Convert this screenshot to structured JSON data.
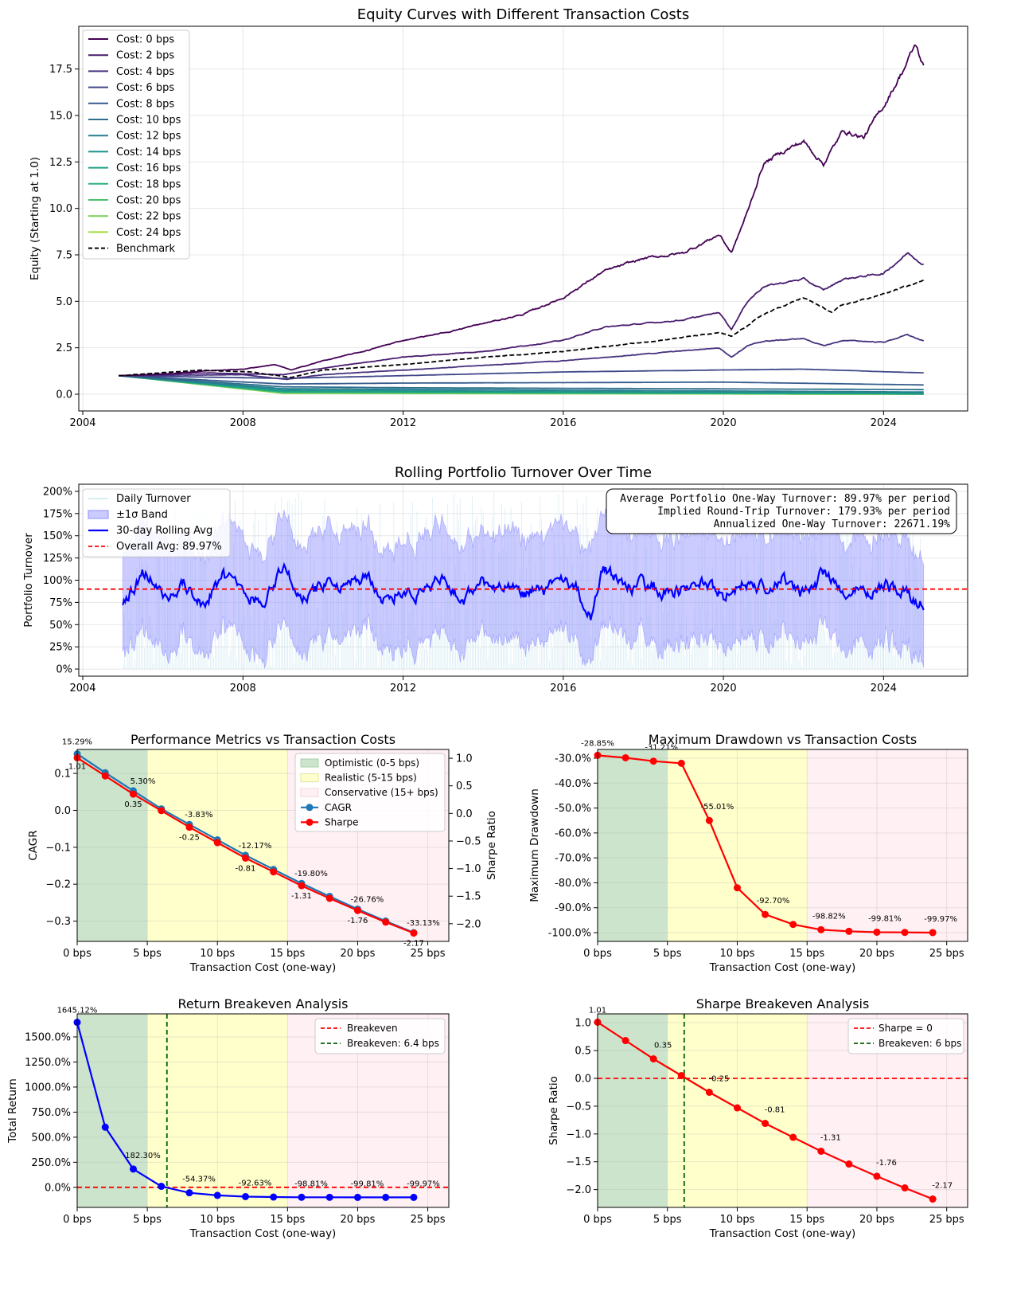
{
  "colors": {
    "costs": [
      "#440154",
      "#481b6d",
      "#46327e",
      "#3f4788",
      "#365c8d",
      "#2e6e8e",
      "#277f8e",
      "#21918c",
      "#1fa187",
      "#2db27d",
      "#4ac16d",
      "#73d056",
      "#a0da39"
    ],
    "benchmark": "#000000",
    "blue": "#0000ff",
    "band": "#8c8cff",
    "red": "#ff0000",
    "green_dash": "#006400",
    "zone_optimistic": "#cce4cc",
    "zone_realistic": "#ffffcc",
    "zone_conservative": "#fff0f3",
    "cagr_line": "#1f77b4"
  },
  "chart_data": [
    {
      "type": "line",
      "title": "Equity Curves with Different Transaction Costs",
      "ylabel": "Equity (Starting at 1.0)",
      "xlabel": "",
      "xlim": [
        2003.9,
        2026.1
      ],
      "ylim": [
        -0.9,
        19.8
      ],
      "xticks": [
        2004,
        2008,
        2012,
        2016,
        2020,
        2024
      ],
      "yticks": [
        0.0,
        2.5,
        5.0,
        7.5,
        10.0,
        12.5,
        15.0,
        17.5
      ],
      "ytick_labels": [
        "0.0",
        "2.5",
        "5.0",
        "7.5",
        "10.0",
        "12.5",
        "15.0",
        "17.5"
      ],
      "legend": [
        "Cost: 0 bps",
        "Cost: 2 bps",
        "Cost: 4 bps",
        "Cost: 6 bps",
        "Cost: 8 bps",
        "Cost: 10 bps",
        "Cost: 12 bps",
        "Cost: 14 bps",
        "Cost: 16 bps",
        "Cost: 18 bps",
        "Cost: 20 bps",
        "Cost: 22 bps",
        "Cost: 24 bps",
        "Benchmark"
      ],
      "series": [
        {
          "name": "Cost: 0 bps",
          "x": [
            2004.9,
            2006,
            2007,
            2008,
            2008.8,
            2009.2,
            2010,
            2011,
            2012,
            2013,
            2014,
            2015,
            2016,
            2017,
            2018,
            2019,
            2019.9,
            2020.2,
            2020.6,
            2021,
            2021.5,
            2022,
            2022.5,
            2023,
            2023.5,
            2024,
            2024.5,
            2024.8,
            2025
          ],
          "y": [
            1.0,
            1.08,
            1.25,
            1.35,
            1.6,
            1.3,
            1.8,
            2.3,
            2.9,
            3.3,
            3.8,
            4.3,
            5.2,
            6.6,
            7.3,
            7.6,
            8.6,
            7.6,
            9.8,
            12.4,
            13.1,
            13.6,
            12.4,
            14.2,
            13.8,
            15.5,
            17.5,
            18.8,
            17.6
          ]
        },
        {
          "name": "Cost: 2 bps",
          "x": [
            2004.9,
            2007,
            2009,
            2010,
            2012,
            2014,
            2016,
            2017,
            2019,
            2019.9,
            2020.2,
            2020.6,
            2021,
            2022,
            2022.5,
            2023,
            2024,
            2024.6,
            2025
          ],
          "y": [
            1.0,
            1.15,
            1.05,
            1.4,
            2.0,
            2.3,
            2.9,
            3.6,
            4.0,
            4.4,
            3.5,
            5.0,
            5.8,
            6.2,
            5.6,
            6.2,
            6.5,
            7.6,
            7.0
          ]
        },
        {
          "name": "Cost: 4 bps",
          "x": [
            2004.9,
            2008,
            2009.1,
            2010,
            2012,
            2016,
            2019.9,
            2020.2,
            2020.6,
            2021,
            2022,
            2022.5,
            2023,
            2024,
            2024.6,
            2025
          ],
          "y": [
            1.0,
            1.05,
            0.8,
            1.05,
            1.3,
            1.8,
            2.5,
            2.0,
            2.6,
            2.85,
            3.0,
            2.6,
            2.9,
            2.8,
            3.2,
            2.85
          ]
        },
        {
          "name": "Cost: 6 bps",
          "x": [
            2004.9,
            2009,
            2012,
            2016,
            2020,
            2022,
            2025
          ],
          "y": [
            1.0,
            0.85,
            1.0,
            1.2,
            1.3,
            1.35,
            1.15
          ]
        },
        {
          "name": "Cost: 8 bps",
          "x": [
            2004.9,
            2009,
            2012,
            2020,
            2025
          ],
          "y": [
            1.0,
            0.55,
            0.6,
            0.65,
            0.5
          ]
        },
        {
          "name": "Cost: 10 bps",
          "x": [
            2004.9,
            2009,
            2012,
            2025
          ],
          "y": [
            1.0,
            0.4,
            0.35,
            0.25
          ]
        },
        {
          "name": "Cost: 12 bps",
          "x": [
            2004.9,
            2009,
            2025
          ],
          "y": [
            1.0,
            0.3,
            0.12
          ]
        },
        {
          "name": "Cost: 14 bps",
          "x": [
            2004.9,
            2009,
            2025
          ],
          "y": [
            1.0,
            0.22,
            0.06
          ]
        },
        {
          "name": "Cost: 16 bps",
          "x": [
            2004.9,
            2009,
            2025
          ],
          "y": [
            1.0,
            0.16,
            0.03
          ]
        },
        {
          "name": "Cost: 18 bps",
          "x": [
            2004.9,
            2009,
            2025
          ],
          "y": [
            1.0,
            0.12,
            0.01
          ]
        },
        {
          "name": "Cost: 20 bps",
          "x": [
            2004.9,
            2009,
            2025
          ],
          "y": [
            1.0,
            0.09,
            0.01
          ]
        },
        {
          "name": "Cost: 22 bps",
          "x": [
            2004.9,
            2009,
            2025
          ],
          "y": [
            1.0,
            0.07,
            0.0
          ]
        },
        {
          "name": "Cost: 24 bps",
          "x": [
            2004.9,
            2009,
            2025
          ],
          "y": [
            1.0,
            0.05,
            0.0
          ]
        },
        {
          "name": "Benchmark",
          "x": [
            2004.9,
            2007,
            2008.2,
            2009.2,
            2010,
            2012,
            2014,
            2016,
            2018,
            2019.9,
            2020.2,
            2021,
            2022,
            2022.7,
            2023,
            2024,
            2025
          ],
          "y": [
            1.0,
            1.3,
            1.2,
            0.9,
            1.3,
            1.6,
            2.0,
            2.3,
            2.8,
            3.3,
            3.1,
            4.3,
            5.2,
            4.4,
            4.8,
            5.4,
            6.1
          ]
        }
      ]
    },
    {
      "type": "line",
      "title": "Rolling Portfolio Turnover Over Time",
      "ylabel": "Portfolio Turnover",
      "xlim": [
        2003.9,
        2026.1
      ],
      "ylim": [
        -0.08,
        2.08
      ],
      "xticks": [
        2004,
        2008,
        2012,
        2016,
        2020,
        2024
      ],
      "yticks": [
        0,
        0.25,
        0.5,
        0.75,
        1.0,
        1.25,
        1.5,
        1.75,
        2.0
      ],
      "ytick_labels": [
        "0%",
        "25%",
        "50%",
        "75%",
        "100%",
        "125%",
        "150%",
        "175%",
        "200%"
      ],
      "legend": [
        "Daily Turnover",
        "±1σ Band",
        "30-day Rolling Avg",
        "Overall Avg: 89.97%"
      ],
      "overall_avg": 0.8997,
      "rolling_avg": {
        "x": [
          2005,
          2005.3,
          2005.6,
          2006,
          2006.5,
          2007,
          2007.5,
          2008,
          2008.5,
          2009,
          2009.5,
          2010,
          2010.5,
          2011,
          2011.5,
          2012,
          2012.5,
          2013,
          2013.5,
          2014,
          2014.5,
          2015,
          2015.5,
          2016,
          2016.4,
          2016.7,
          2017,
          2017.5,
          2018,
          2018.5,
          2019,
          2019.5,
          2020,
          2020.5,
          2021,
          2021.5,
          2022,
          2022.5,
          2023,
          2023.5,
          2024,
          2024.5,
          2025
        ],
        "y": [
          0.75,
          0.95,
          1.1,
          0.8,
          0.95,
          0.75,
          1.05,
          0.85,
          0.78,
          1.15,
          0.8,
          0.95,
          0.9,
          1.05,
          0.8,
          0.9,
          0.85,
          1.0,
          0.75,
          1.0,
          0.88,
          0.85,
          0.9,
          0.95,
          0.85,
          0.55,
          1.18,
          0.9,
          0.95,
          0.88,
          0.9,
          1.0,
          0.8,
          0.95,
          0.9,
          1.0,
          0.85,
          1.05,
          0.9,
          0.85,
          0.95,
          0.88,
          0.75
        ]
      },
      "band_upper": [
        1.3,
        1.55,
        1.7,
        1.45,
        1.5,
        1.3,
        1.65,
        1.45,
        1.35,
        1.75,
        1.4,
        1.55,
        1.5,
        1.6,
        1.35,
        1.5,
        1.45,
        1.6,
        1.35,
        1.55,
        1.5,
        1.45,
        1.5,
        1.55,
        1.45,
        1.35,
        1.8,
        1.5,
        1.55,
        1.5,
        1.5,
        1.6,
        1.4,
        1.55,
        1.5,
        1.6,
        1.45,
        1.65,
        1.5,
        1.45,
        1.55,
        1.5,
        1.3
      ],
      "band_lower": [
        0.2,
        0.35,
        0.5,
        0.15,
        0.4,
        0.2,
        0.45,
        0.25,
        0.2,
        0.55,
        0.2,
        0.35,
        0.3,
        0.5,
        0.25,
        0.3,
        0.25,
        0.4,
        0.15,
        0.45,
        0.26,
        0.25,
        0.3,
        0.35,
        0.25,
        0.05,
        0.56,
        0.3,
        0.35,
        0.26,
        0.3,
        0.4,
        0.2,
        0.35,
        0.3,
        0.4,
        0.25,
        0.45,
        0.3,
        0.25,
        0.35,
        0.26,
        0.2
      ]
    },
    {
      "type": "line",
      "title": "Performance Metrics vs Transaction Costs",
      "xlabel": "Transaction Cost (one-way)",
      "ylabel": "CAGR",
      "ylabel2": "Sharpe Ratio",
      "x": [
        0,
        2,
        4,
        6,
        8,
        10,
        12,
        14,
        16,
        18,
        20,
        22,
        24
      ],
      "xlim": [
        0,
        26.5
      ],
      "xticks": [
        0,
        5,
        10,
        15,
        20,
        25
      ],
      "xtick_labels": [
        "0 bps",
        "5 bps",
        "10 bps",
        "15 bps",
        "20 bps",
        "25 bps"
      ],
      "ylim": [
        -0.355,
        0.165
      ],
      "yticks": [
        -0.3,
        -0.2,
        -0.1,
        0.0,
        0.1
      ],
      "ytick_labels": [
        "−0.3",
        "−0.2",
        "−0.1",
        "0.0",
        "0.1"
      ],
      "y2lim": [
        -2.32,
        1.16
      ],
      "y2ticks": [
        -2.0,
        -1.5,
        -1.0,
        -0.5,
        0.0,
        0.5,
        1.0
      ],
      "y2tick_labels": [
        "−2.0",
        "−1.5",
        "−1.0",
        "−0.5",
        "0.0",
        "0.5",
        "1.0"
      ],
      "cagr": [
        0.1529,
        0.102,
        0.053,
        0.004,
        -0.0383,
        -0.08,
        -0.1217,
        -0.16,
        -0.198,
        -0.233,
        -0.2676,
        -0.3,
        -0.3313
      ],
      "sharpe": [
        1.01,
        0.68,
        0.35,
        0.05,
        -0.25,
        -0.53,
        -0.81,
        -1.06,
        -1.31,
        -1.54,
        -1.76,
        -1.97,
        -2.17
      ],
      "cagr_labels": [
        [
          "15.29%",
          0
        ],
        [
          "5.30%",
          4
        ],
        [
          "-3.83%",
          8
        ],
        [
          "-12.17%",
          12
        ],
        [
          "-19.80%",
          16
        ],
        [
          "-26.76%",
          20
        ],
        [
          "-33.13%",
          24
        ]
      ],
      "sharpe_labels": [
        [
          "1.01",
          0
        ],
        [
          "0.35",
          4
        ],
        [
          "-0.25",
          8
        ],
        [
          "-0.81",
          12
        ],
        [
          "-1.31",
          16
        ],
        [
          "-1.76",
          20
        ],
        [
          "-2.17",
          24
        ]
      ],
      "legend": [
        "Optimistic (0-5 bps)",
        "Realistic (5-15 bps)",
        "Conservative (15+ bps)",
        "CAGR",
        "Sharpe"
      ]
    },
    {
      "type": "line",
      "title": "Maximum Drawdown vs Transaction Costs",
      "xlabel": "Transaction Cost (one-way)",
      "ylabel": "Maximum Drawdown",
      "x": [
        0,
        2,
        4,
        6,
        8,
        10,
        12,
        14,
        16,
        18,
        20,
        22,
        24
      ],
      "xlim": [
        0,
        26.5
      ],
      "xticks": [
        0,
        5,
        10,
        15,
        20,
        25
      ],
      "xtick_labels": [
        "0 bps",
        "5 bps",
        "10 bps",
        "15 bps",
        "20 bps",
        "25 bps"
      ],
      "ylim": [
        -1.035,
        -0.265
      ],
      "yticks": [
        -1.0,
        -0.9,
        -0.8,
        -0.7,
        -0.6,
        -0.5,
        -0.4,
        -0.3
      ],
      "ytick_labels": [
        "-100.0%",
        "-90.0%",
        "-80.0%",
        "-70.0%",
        "-60.0%",
        "-50.0%",
        "-40.0%",
        "-30.0%"
      ],
      "values": [
        -0.2885,
        -0.2985,
        -0.3121,
        -0.3205,
        -0.5501,
        -0.82,
        -0.927,
        -0.967,
        -0.9882,
        -0.9945,
        -0.9981,
        -0.999,
        -0.9997
      ],
      "labels": [
        [
          "-28.85%",
          0
        ],
        [
          "-31.21%",
          4
        ],
        [
          "-55.01%",
          8
        ],
        [
          "-92.70%",
          12
        ],
        [
          "-98.82%",
          16
        ],
        [
          "-99.81%",
          20
        ],
        [
          "-99.97%",
          24
        ]
      ]
    },
    {
      "type": "line",
      "title": "Return Breakeven Analysis",
      "xlabel": "Transaction Cost (one-way)",
      "ylabel": "Total Return",
      "x": [
        0,
        2,
        4,
        6,
        8,
        10,
        12,
        14,
        16,
        18,
        20,
        22,
        24
      ],
      "xlim": [
        0,
        26.5
      ],
      "xticks": [
        0,
        5,
        10,
        15,
        20,
        25
      ],
      "xtick_labels": [
        "0 bps",
        "5 bps",
        "10 bps",
        "15 bps",
        "20 bps",
        "25 bps"
      ],
      "ylim": [
        -2.0,
        17.3
      ],
      "yticks": [
        0,
        2.5,
        5.0,
        7.5,
        10.0,
        12.5,
        15.0
      ],
      "ytick_labels": [
        "0.0%",
        "250.0%",
        "500.0%",
        "750.0%",
        "1000.0%",
        "1250.0%",
        "1500.0%"
      ],
      "values": [
        16.4512,
        6.0,
        1.823,
        0.1,
        -0.5437,
        -0.8,
        -0.9263,
        -0.97,
        -0.9881,
        -0.995,
        -0.9981,
        -0.999,
        -0.9997
      ],
      "labels": [
        [
          "1645.12%",
          0
        ],
        [
          "182.30%",
          4
        ],
        [
          "-54.37%",
          8
        ],
        [
          "-92.63%",
          12
        ],
        [
          "-98.81%",
          16
        ],
        [
          "-99.81%",
          20
        ],
        [
          "-99.97%",
          24
        ]
      ],
      "breakeven_x": 6.4,
      "legend": [
        "Breakeven",
        "Breakeven: 6.4 bps"
      ]
    },
    {
      "type": "line",
      "title": "Sharpe Breakeven Analysis",
      "xlabel": "Transaction Cost (one-way)",
      "ylabel": "Sharpe Ratio",
      "x": [
        0,
        2,
        4,
        6,
        8,
        10,
        12,
        14,
        16,
        18,
        20,
        22,
        24
      ],
      "xlim": [
        0,
        26.5
      ],
      "xticks": [
        0,
        5,
        10,
        15,
        20,
        25
      ],
      "xtick_labels": [
        "0 bps",
        "5 bps",
        "10 bps",
        "15 bps",
        "20 bps",
        "25 bps"
      ],
      "ylim": [
        -2.32,
        1.16
      ],
      "yticks": [
        -2.0,
        -1.5,
        -1.0,
        -0.5,
        0.0,
        0.5,
        1.0
      ],
      "ytick_labels": [
        "−2.0",
        "−1.5",
        "−1.0",
        "−0.5",
        "0.0",
        "0.5",
        "1.0"
      ],
      "values": [
        1.01,
        0.68,
        0.35,
        0.05,
        -0.25,
        -0.53,
        -0.81,
        -1.06,
        -1.31,
        -1.54,
        -1.76,
        -1.97,
        -2.17
      ],
      "labels": [
        [
          "1.01",
          0
        ],
        [
          "0.35",
          4
        ],
        [
          "-0.25",
          8
        ],
        [
          "-0.81",
          12
        ],
        [
          "-1.31",
          16
        ],
        [
          "-1.76",
          20
        ],
        [
          "-2.17",
          24
        ]
      ],
      "breakeven_x": 6.2,
      "legend": [
        "Sharpe = 0",
        "Breakeven: 6 bps"
      ]
    }
  ],
  "turnover_box": {
    "line1": "Average Portfolio One-Way Turnover: 89.97% per period",
    "line2": "Implied Round-Trip Turnover: 179.93% per period",
    "line3": "Annualized One-Way Turnover: 22671.19%"
  }
}
